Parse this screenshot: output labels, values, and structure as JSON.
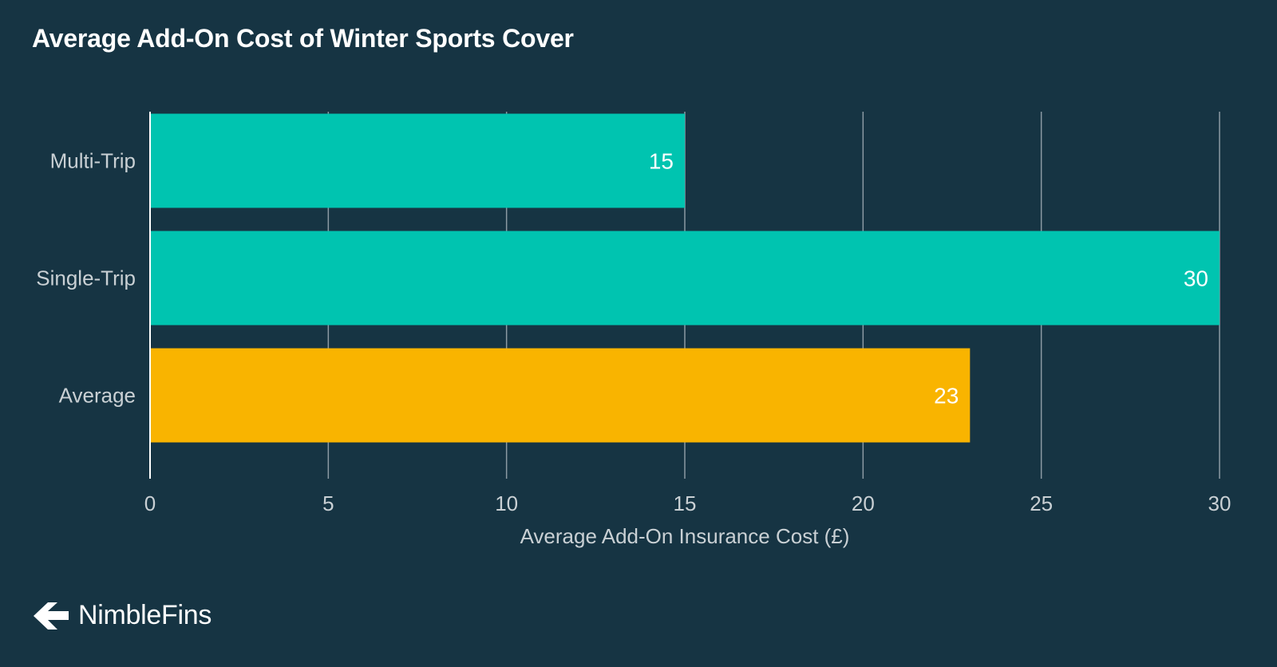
{
  "chart_data": {
    "type": "bar",
    "orientation": "horizontal",
    "title": "Average Add-On Cost of Winter Sports Cover",
    "xlabel": "Average Add-On Insurance Cost (£)",
    "ylabel": "",
    "categories": [
      "Multi-Trip",
      "Single-Trip",
      "Average"
    ],
    "values": [
      15,
      30,
      23
    ],
    "data_labels": [
      "15",
      "30",
      "23"
    ],
    "bar_colors": [
      "#00c4b0",
      "#00c4b0",
      "#f9b400"
    ],
    "xlim": [
      0,
      30
    ],
    "xticks": [
      0,
      5,
      10,
      15,
      20,
      25,
      30
    ],
    "grid": true,
    "legend": "none"
  },
  "colors": {
    "background": "#163443",
    "gridline": "#8b9aa3",
    "axis_text": "#c9d0d4",
    "title_text": "#ffffff"
  },
  "brand": {
    "name": "NimbleFins",
    "logo_icon": "nimblefins-arrow-icon"
  }
}
